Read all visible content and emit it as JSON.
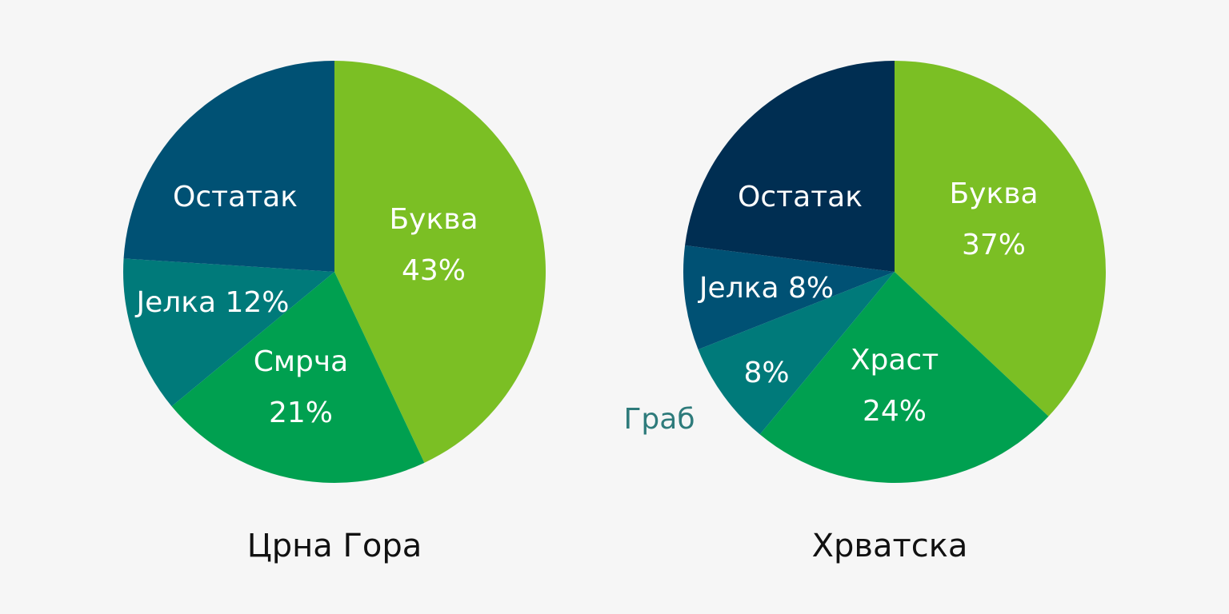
{
  "chart_data": [
    {
      "type": "pie",
      "title": "Црна Гора",
      "slices": [
        {
          "label": "Буква",
          "value": 43,
          "value_text": "43%",
          "color": "#7bbf24",
          "text_color": "#ffffff"
        },
        {
          "label": "Смрча",
          "value": 21,
          "value_text": "21%",
          "color": "#00a050",
          "text_color": "#ffffff"
        },
        {
          "label": "Јелка",
          "value": 12,
          "value_text": "12%",
          "color": "#007a7a",
          "text_color": "#ffffff"
        },
        {
          "label": "Остатак",
          "value": 24,
          "value_text": "",
          "color": "#005174",
          "text_color": "#ffffff"
        }
      ]
    },
    {
      "type": "pie",
      "title": "Хрватска",
      "slices": [
        {
          "label": "Буква",
          "value": 37,
          "value_text": "37%",
          "color": "#7bbf24",
          "text_color": "#ffffff"
        },
        {
          "label": "Храст",
          "value": 24,
          "value_text": "24%",
          "color": "#00a050",
          "text_color": "#ffffff"
        },
        {
          "label": "Граб",
          "value": 8,
          "value_text": "8%",
          "color": "#007a7a",
          "text_color": "#ffffff",
          "outside_label_color": "#2e7b7b"
        },
        {
          "label": "Јелка",
          "value": 8,
          "value_text": "8%",
          "color": "#005174",
          "text_color": "#ffffff"
        },
        {
          "label": "Остатак",
          "value": 23,
          "value_text": "",
          "color": "#002e52",
          "text_color": "#ffffff"
        }
      ]
    }
  ]
}
